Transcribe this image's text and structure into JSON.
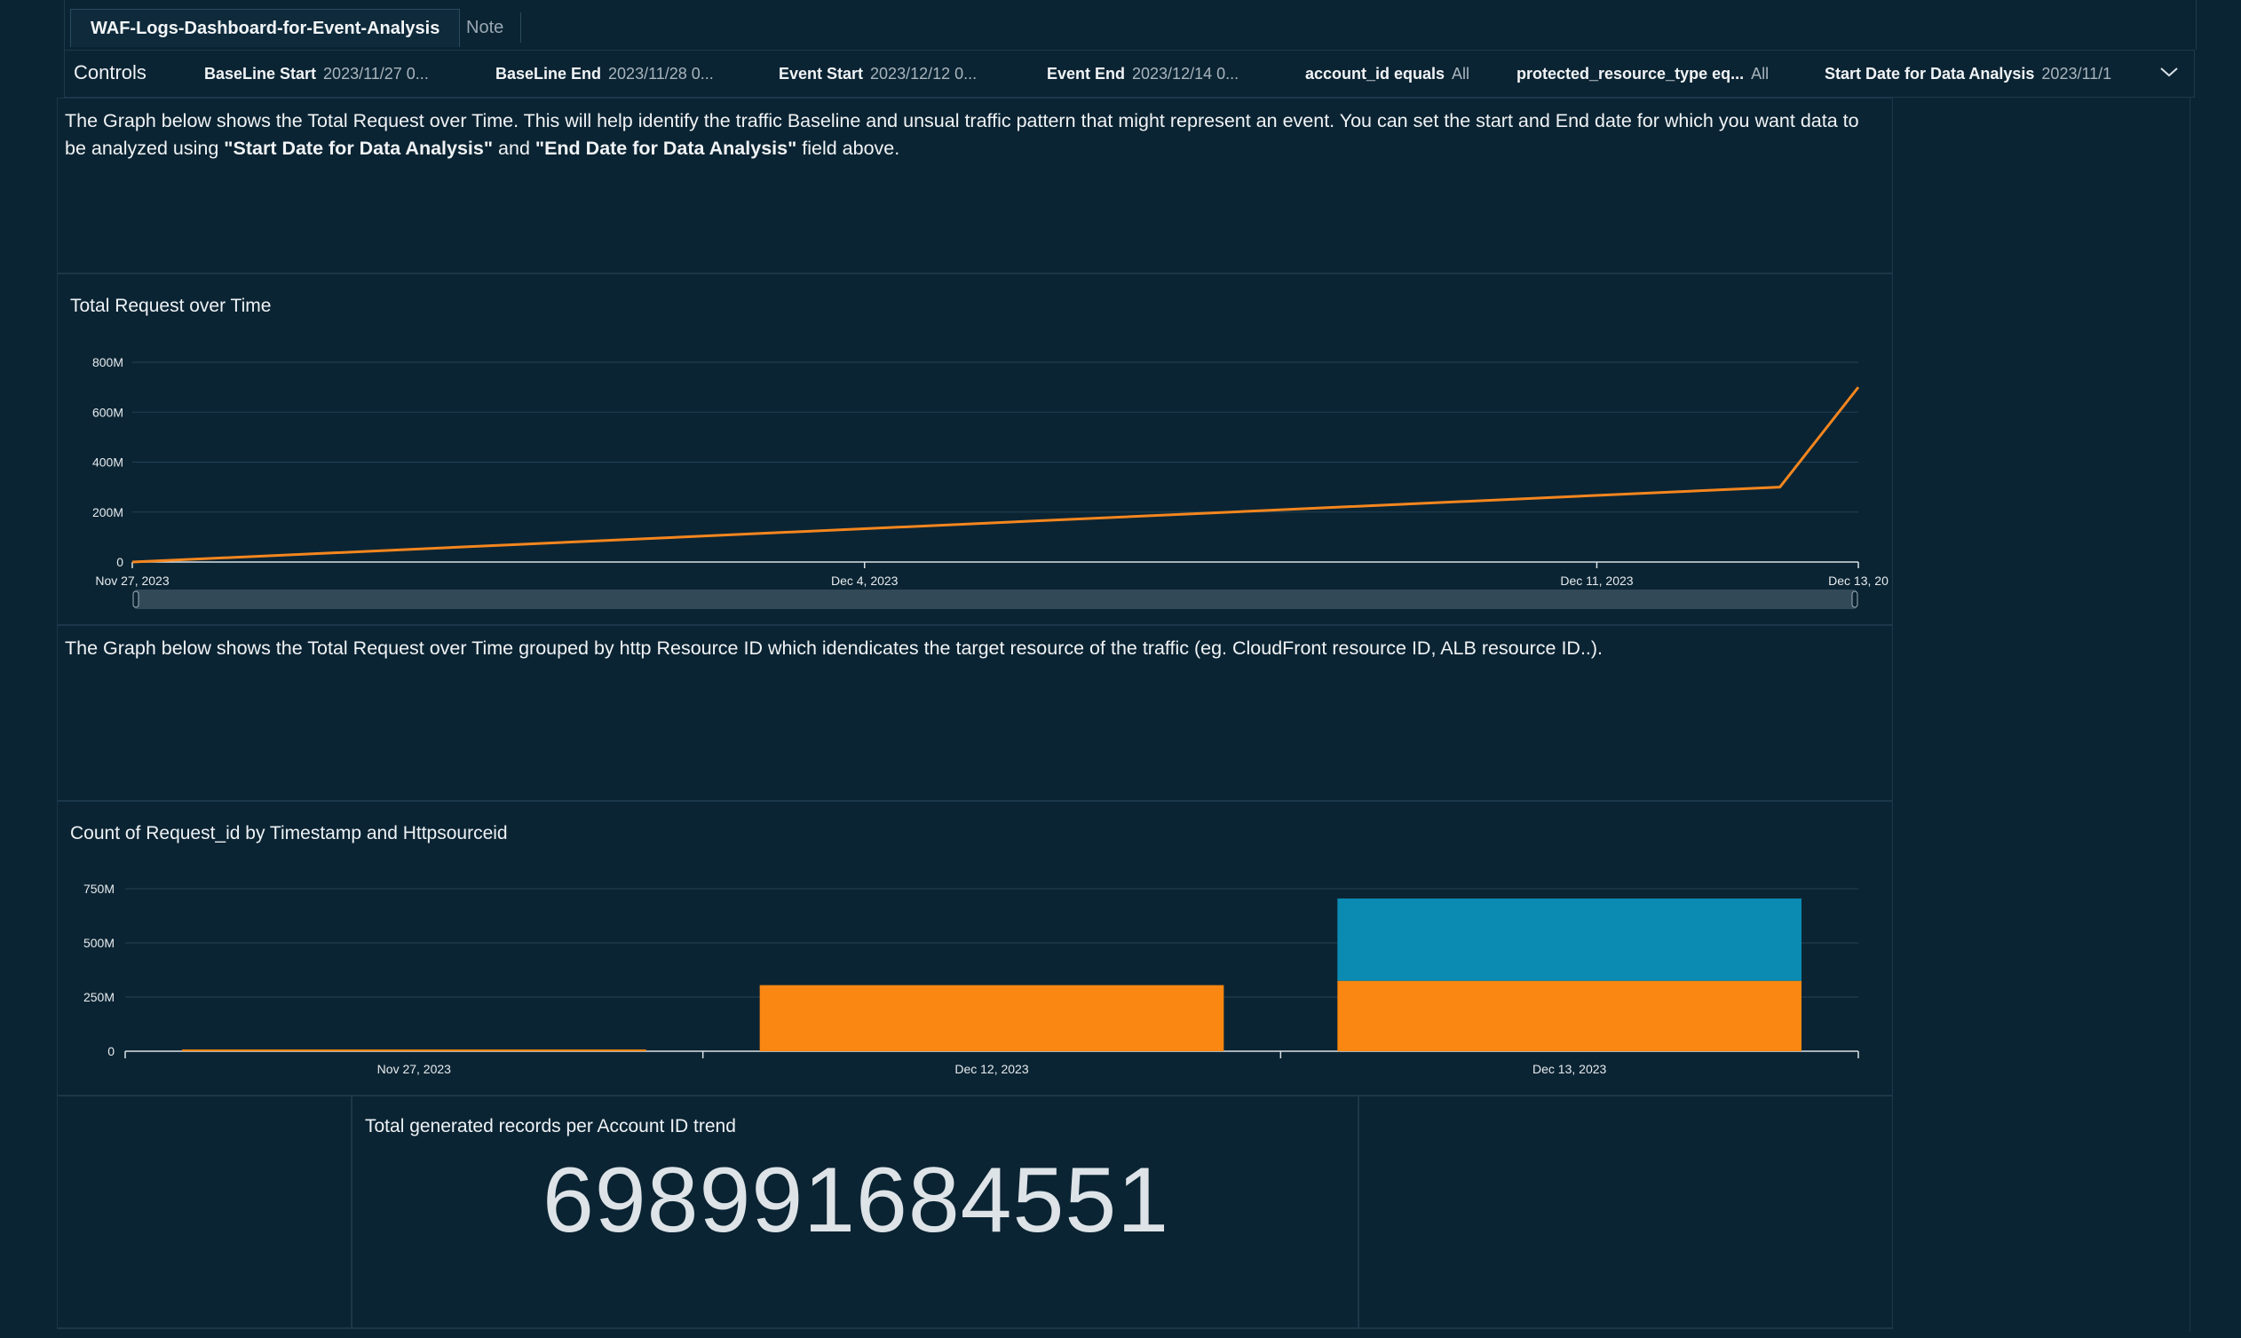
{
  "tabs": {
    "active": "WAF-Logs-Dashboard-for-Event-Analysis",
    "note": "Note"
  },
  "controls": {
    "title": "Controls",
    "items": [
      {
        "label": "BaseLine Start",
        "value": "2023/11/27 0..."
      },
      {
        "label": "BaseLine End",
        "value": "2023/11/28 0..."
      },
      {
        "label": "Event Start",
        "value": "2023/12/12 0..."
      },
      {
        "label": "Event End",
        "value": "2023/12/14 0..."
      },
      {
        "label": "account_id equals",
        "value": "All"
      },
      {
        "label": "protected_resource_type eq...",
        "value": "All"
      },
      {
        "label": "Start Date for Data Analysis",
        "value": "2023/11/1"
      }
    ]
  },
  "text1": {
    "before": "The Graph below shows the Total Request over Time. This will help identify the traffic Baseline and unsual traffic pattern that might represent an event. You can set the start and End date for which you want data to be analyzed using ",
    "bold1": "\"Start Date for Data Analysis\"",
    "mid": " and ",
    "bold2": "\"End Date for Data Analysis\"",
    "after": " field above."
  },
  "text2": "The Graph below shows the Total Request over Time grouped by http Resource ID which idendicates the target resource of the traffic (eg. CloudFront resource ID, ALB resource ID..).",
  "kpi": {
    "title": "Total generated records per Account ID trend",
    "value": "698991684551"
  },
  "chart_data": [
    {
      "type": "line",
      "title": "Total Request over Time",
      "x": [
        "2023-11-27",
        "2023-12-12",
        "2023-12-13"
      ],
      "series": [
        {
          "values": [
            0,
            300000000,
            700000000
          ],
          "color": "#f5861e"
        }
      ],
      "x_ticks": [
        "Nov 27, 2023",
        "Dec 4, 2023",
        "Dec 11, 2023",
        "Dec 13, 20"
      ],
      "y_ticks": [
        "0",
        "200M",
        "400M",
        "600M",
        "800M"
      ],
      "ylim": [
        0,
        800000000
      ]
    },
    {
      "type": "bar",
      "stacked": true,
      "title": "Count of Request_id by Timestamp and Httpsourceid",
      "categories": [
        "Nov 27, 2023",
        "Dec 12, 2023",
        "Dec 13, 2023"
      ],
      "series": [
        {
          "values": [
            3000000,
            305000000,
            325000000
          ],
          "color": "#f98712"
        },
        {
          "values": [
            0,
            0,
            380000000
          ],
          "color": "#0b8ab2"
        }
      ],
      "y_ticks": [
        "0",
        "250M",
        "500M",
        "750M"
      ],
      "ylim": [
        0,
        750000000
      ]
    }
  ]
}
